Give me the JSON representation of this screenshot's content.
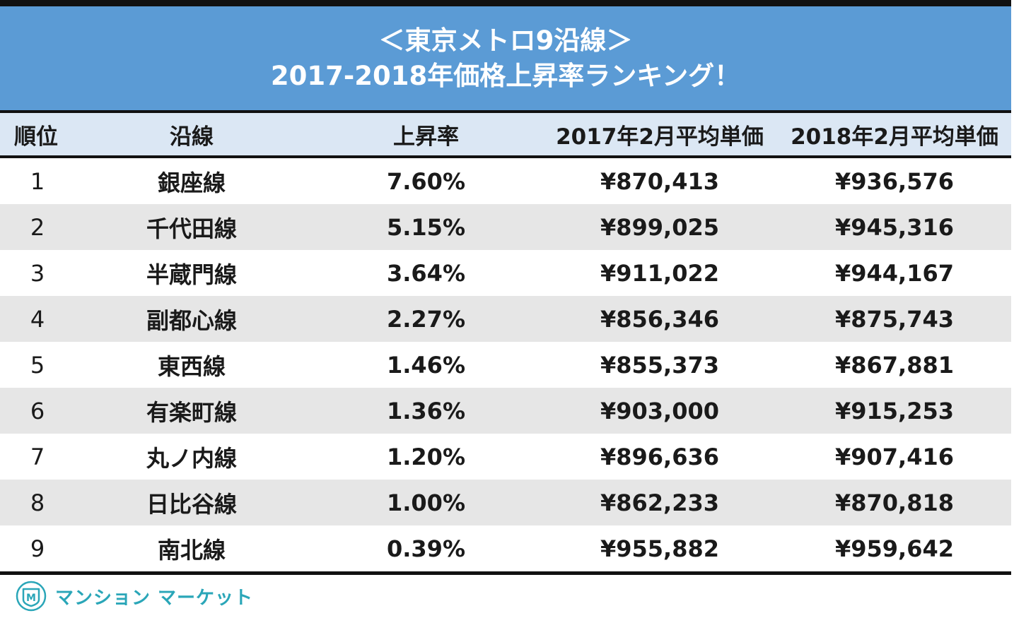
{
  "header": {
    "title_line1": "＜東京メトロ9沿線＞",
    "title_line2": "2017-2018年価格上昇率ランキング！"
  },
  "table": {
    "columns": [
      "順位",
      "沿線",
      "上昇率",
      "2017年2月平均単価",
      "2018年2月平均単価"
    ],
    "rows": [
      {
        "rank": "1",
        "line": "銀座線",
        "rate": "7.60%",
        "price_2017": "¥870,413",
        "price_2018": "¥936,576"
      },
      {
        "rank": "2",
        "line": "千代田線",
        "rate": "5.15%",
        "price_2017": "¥899,025",
        "price_2018": "¥945,316"
      },
      {
        "rank": "3",
        "line": "半蔵門線",
        "rate": "3.64%",
        "price_2017": "¥911,022",
        "price_2018": "¥944,167"
      },
      {
        "rank": "4",
        "line": "副都心線",
        "rate": "2.27%",
        "price_2017": "¥856,346",
        "price_2018": "¥875,743"
      },
      {
        "rank": "5",
        "line": "東西線",
        "rate": "1.46%",
        "price_2017": "¥855,373",
        "price_2018": "¥867,881"
      },
      {
        "rank": "6",
        "line": "有楽町線",
        "rate": "1.36%",
        "price_2017": "¥903,000",
        "price_2018": "¥915,253"
      },
      {
        "rank": "7",
        "line": "丸ノ内線",
        "rate": "1.20%",
        "price_2017": "¥896,636",
        "price_2018": "¥907,416"
      },
      {
        "rank": "8",
        "line": "日比谷線",
        "rate": "1.00%",
        "price_2017": "¥862,233",
        "price_2018": "¥870,818"
      },
      {
        "rank": "9",
        "line": "南北線",
        "rate": "0.39%",
        "price_2017": "¥955,882",
        "price_2018": "¥959,642"
      }
    ]
  },
  "footer": {
    "logo_mark": "M",
    "logo_text": "マンション マーケット"
  },
  "colors": {
    "title_bg": "#5b9bd5",
    "header_bg": "#dbe7f4",
    "stripe_bg": "#e6e6e6",
    "brand": "#2aa6b8"
  },
  "chart_data": {
    "type": "table",
    "title": "＜東京メトロ9沿線＞ 2017-2018年価格上昇率ランキング！",
    "columns": [
      "順位",
      "沿線",
      "上昇率",
      "2017年2月平均単価",
      "2018年2月平均単価"
    ],
    "rows": [
      [
        1,
        "銀座線",
        7.6,
        870413,
        936576
      ],
      [
        2,
        "千代田線",
        5.15,
        899025,
        945316
      ],
      [
        3,
        "半蔵門線",
        3.64,
        911022,
        944167
      ],
      [
        4,
        "副都心線",
        2.27,
        856346,
        875743
      ],
      [
        5,
        "東西線",
        1.46,
        855373,
        867881
      ],
      [
        6,
        "有楽町線",
        1.36,
        903000,
        915253
      ],
      [
        7,
        "丸ノ内線",
        1.2,
        896636,
        907416
      ],
      [
        8,
        "日比谷線",
        1.0,
        862233,
        870818
      ],
      [
        9,
        "南北線",
        0.39,
        955882,
        959642
      ]
    ]
  }
}
